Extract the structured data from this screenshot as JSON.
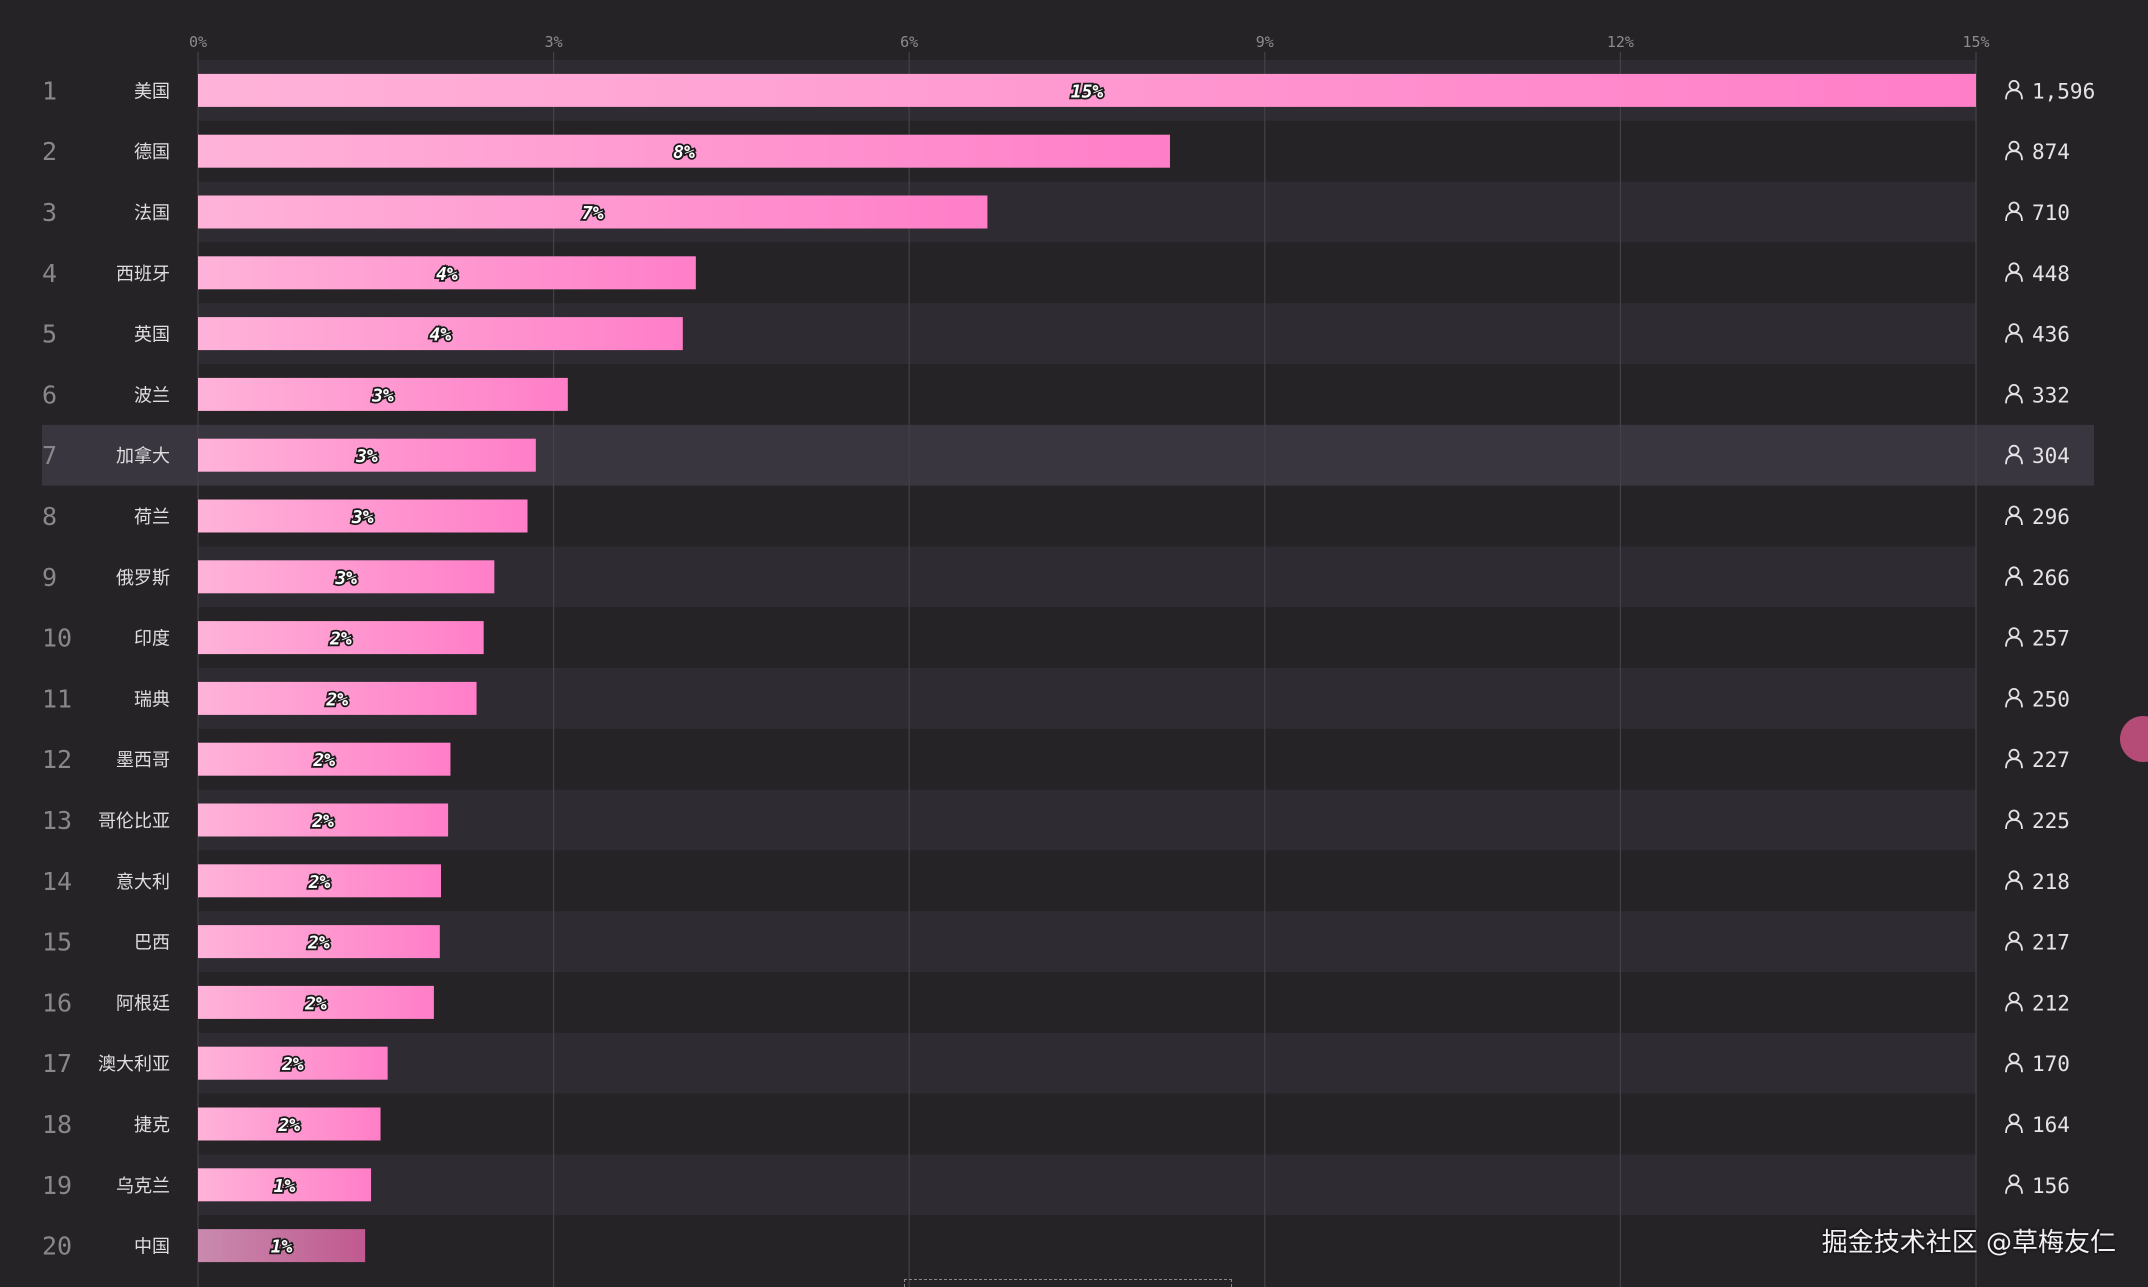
{
  "chart_data": {
    "type": "bar",
    "orientation": "horizontal",
    "x_ticks": [
      "0%",
      "3%",
      "6%",
      "9%",
      "12%",
      "15%"
    ],
    "xlim": [
      0,
      15
    ],
    "grid": true,
    "colors": {
      "bar_start": "#ffb3d9",
      "bar_end": "#ff7ec8",
      "bar_last_start": "#c98aae",
      "bar_last_end": "#c0598f",
      "background": "#252325",
      "row_stripe": "#2f2b32",
      "row_highlight": "#3a3640"
    },
    "highlighted_rank": 7,
    "rows": [
      {
        "rank": "1",
        "country": "美国",
        "value": 15.0,
        "label": "15%",
        "count": "1,596"
      },
      {
        "rank": "2",
        "country": "德国",
        "value": 8.2,
        "label": "8%",
        "count": "874"
      },
      {
        "rank": "3",
        "country": "法国",
        "value": 6.66,
        "label": "7%",
        "count": "710"
      },
      {
        "rank": "4",
        "country": "西班牙",
        "value": 4.2,
        "label": "4%",
        "count": "448"
      },
      {
        "rank": "5",
        "country": "英国",
        "value": 4.09,
        "label": "4%",
        "count": "436"
      },
      {
        "rank": "6",
        "country": "波兰",
        "value": 3.12,
        "label": "3%",
        "count": "332"
      },
      {
        "rank": "7",
        "country": "加拿大",
        "value": 2.85,
        "label": "3%",
        "count": "304"
      },
      {
        "rank": "8",
        "country": "荷兰",
        "value": 2.78,
        "label": "3%",
        "count": "296"
      },
      {
        "rank": "9",
        "country": "俄罗斯",
        "value": 2.5,
        "label": "3%",
        "count": "266"
      },
      {
        "rank": "10",
        "country": "印度",
        "value": 2.41,
        "label": "2%",
        "count": "257"
      },
      {
        "rank": "11",
        "country": "瑞典",
        "value": 2.35,
        "label": "2%",
        "count": "250"
      },
      {
        "rank": "12",
        "country": "墨西哥",
        "value": 2.13,
        "label": "2%",
        "count": "227"
      },
      {
        "rank": "13",
        "country": "哥伦比亚",
        "value": 2.11,
        "label": "2%",
        "count": "225"
      },
      {
        "rank": "14",
        "country": "意大利",
        "value": 2.05,
        "label": "2%",
        "count": "218"
      },
      {
        "rank": "15",
        "country": "巴西",
        "value": 2.04,
        "label": "2%",
        "count": "217"
      },
      {
        "rank": "16",
        "country": "阿根廷",
        "value": 1.99,
        "label": "2%",
        "count": "212"
      },
      {
        "rank": "17",
        "country": "澳大利亚",
        "value": 1.6,
        "label": "2%",
        "count": "170"
      },
      {
        "rank": "18",
        "country": "捷克",
        "value": 1.54,
        "label": "2%",
        "count": "164"
      },
      {
        "rank": "19",
        "country": "乌克兰",
        "value": 1.46,
        "label": "1%",
        "count": "156"
      },
      {
        "rank": "20",
        "country": "中国",
        "value": 1.41,
        "label": "1%",
        "count": ""
      }
    ]
  },
  "icons": {
    "count_icon": "user-icon"
  },
  "watermark": "掘金技术社区 @草梅友仁"
}
